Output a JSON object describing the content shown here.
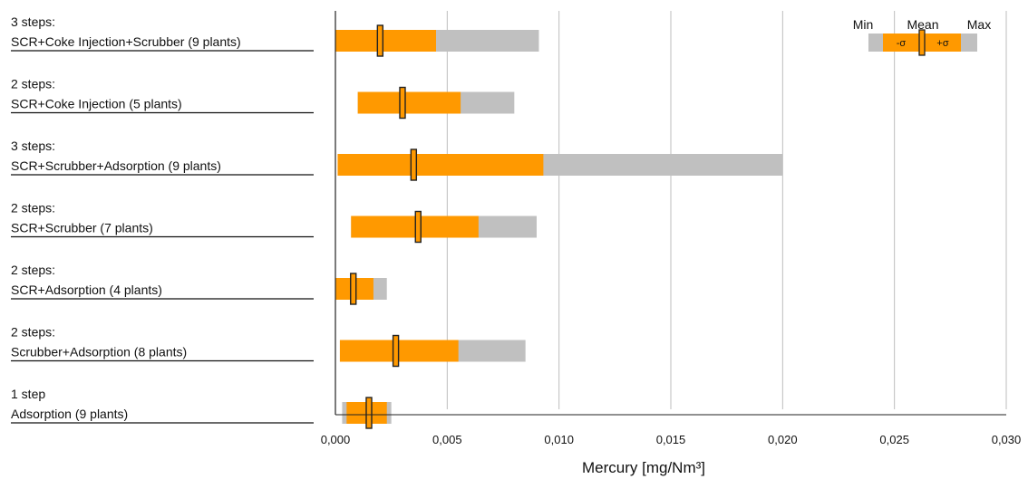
{
  "chart_data": {
    "type": "box-range",
    "xlabel": "Mercury [mg/Nm³]",
    "xlim": [
      0,
      0.03
    ],
    "xticks": [
      "0,000",
      "0,005",
      "0,010",
      "0,015",
      "0,020",
      "0,025",
      "0,030"
    ],
    "grid": "vertical",
    "legend": {
      "position": "top-right",
      "labels": [
        "Min",
        "Mean",
        "Max"
      ],
      "minus_sigma": "-σ",
      "plus_sigma": "+σ"
    },
    "colors": {
      "sigma_range": "#ff9900",
      "min_max_range": "#c0c0c0",
      "mean_marker": "#ff9900",
      "grid": "#bdbdbd"
    },
    "categories": [
      {
        "line1": "3 steps:",
        "line2": "SCR+Coke Injection+Scrubber (9 plants)",
        "min": 0.0,
        "minus_sigma": 0.0,
        "mean": 0.002,
        "plus_sigma": 0.0045,
        "max": 0.0091
      },
      {
        "line1": "2 steps:",
        "line2": "SCR+Coke Injection (5 plants)",
        "min": 0.001,
        "minus_sigma": 0.001,
        "mean": 0.003,
        "plus_sigma": 0.0056,
        "max": 0.008
      },
      {
        "line1": "3 steps:",
        "line2": "SCR+Scrubber+Adsorption (9 plants)",
        "min": 0.0001,
        "minus_sigma": 0.0001,
        "mean": 0.0035,
        "plus_sigma": 0.0093,
        "max": 0.02
      },
      {
        "line1": "2 steps:",
        "line2": "SCR+Scrubber (7 plants)",
        "min": 0.0007,
        "minus_sigma": 0.0007,
        "mean": 0.0037,
        "plus_sigma": 0.0064,
        "max": 0.009
      },
      {
        "line1": "2 steps:",
        "line2": "SCR+Adsorption (4 plants)",
        "min": 0.0,
        "minus_sigma": 0.0,
        "mean": 0.0008,
        "plus_sigma": 0.0017,
        "max": 0.0023
      },
      {
        "line1": "2 steps:",
        "line2": "Scrubber+Adsorption (8 plants)",
        "min": 0.0002,
        "minus_sigma": 0.0002,
        "mean": 0.0027,
        "plus_sigma": 0.0055,
        "max": 0.0085
      },
      {
        "line1": "1 step",
        "line2": "Adsorption (9 plants)",
        "min": 0.0003,
        "minus_sigma": 0.0005,
        "mean": 0.0015,
        "plus_sigma": 0.0023,
        "max": 0.0025
      }
    ]
  }
}
